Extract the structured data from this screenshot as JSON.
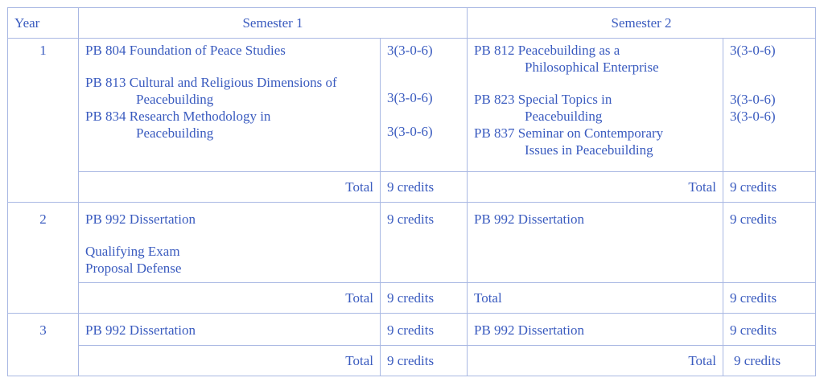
{
  "headers": {
    "year": "Year",
    "sem1": "Semester 1",
    "sem2": "Semester 2"
  },
  "total_label": "Total",
  "years": [
    {
      "year": "1",
      "sem1": {
        "courses": [
          {
            "code_title": "PB 804 Foundation of Peace Studies",
            "cont": "",
            "credits": "3(3-0-6)"
          },
          {
            "code_title": "PB 813 Cultural and Religious Dimensions of",
            "cont": "Peacebuilding",
            "credits": "3(3-0-6)"
          },
          {
            "code_title": "PB 834 Research Methodology in",
            "cont": "Peacebuilding",
            "credits": "3(3-0-6)"
          }
        ],
        "total": "9 credits"
      },
      "sem2": {
        "courses": [
          {
            "code_title": "PB 812 Peacebuilding as a",
            "cont": "Philosophical Enterprise",
            "credits": "3(3-0-6)"
          },
          {
            "code_title": "PB 823 Special Topics in",
            "cont": "Peacebuilding",
            "credits": "3(3-0-6)"
          },
          {
            "code_title": "PB 837 Seminar on Contemporary",
            "cont": "Issues in Peacebuilding",
            "credits": "3(3-0-6)"
          }
        ],
        "total": "9 credits"
      }
    },
    {
      "year": "2",
      "sem1": {
        "course": "PB 992 Dissertation",
        "credits": "9 credits",
        "notes": [
          "Qualifying Exam",
          "Proposal Defense"
        ],
        "total": "9 credits"
      },
      "sem2": {
        "course": "PB 992 Dissertation",
        "credits": "9 credits",
        "total": "9 credits"
      }
    },
    {
      "year": "3",
      "sem1": {
        "course": "PB 992 Dissertation",
        "credits": "9 credits",
        "total": "9 credits"
      },
      "sem2": {
        "course": "PB 992 Dissertation",
        "credits": "9 credits",
        "total": "9 credits"
      }
    }
  ]
}
